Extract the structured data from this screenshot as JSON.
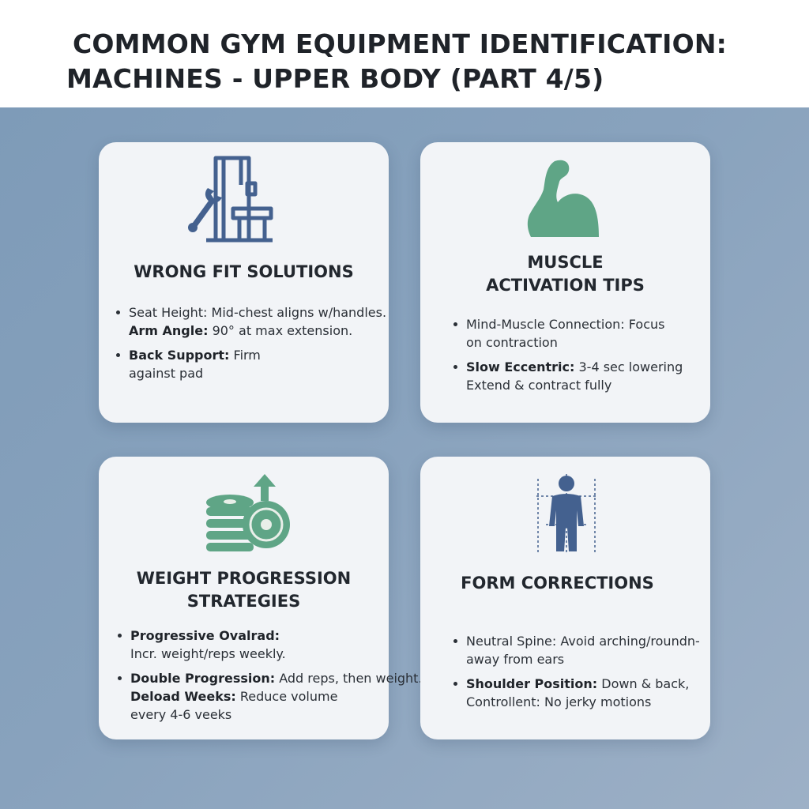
{
  "header": {
    "title_line1": "COMMON GYM EQUIPMENT IDENTIFICATION:",
    "title_line2": "MACHINES - UPPER BODY (PART 4/5)"
  },
  "colors": {
    "accent_blue": "#44618f",
    "accent_green": "#5fa586",
    "background": "#8aa3bd"
  },
  "cards": [
    {
      "icon": "machine-wrench-icon",
      "title": "WRONG FIT SOLUTIONS",
      "items": [
        {
          "label": "",
          "text": "Seat Height: Mid-chest aligns w/handles."
        },
        {
          "label": "Arm Angle:",
          "text": " 90° at max extension."
        },
        {
          "label": "Back Support:",
          "text": " Firm",
          "text2": "against pad"
        }
      ]
    },
    {
      "icon": "flexed-bicep-icon",
      "title_line1": "MUSCLE",
      "title_line2": "ACTIVATION TIPS",
      "items": [
        {
          "text": "Mind-Muscle Connection: Focus",
          "text2": "on contraction"
        },
        {
          "label": "Slow Eccentric:",
          "text": " 3-4 sec lowering",
          "text2": "Extend & contract fully"
        }
      ]
    },
    {
      "icon": "weight-plates-up-arrow-icon",
      "title_line1": "WEIGHT PROGRESSION",
      "title_line2": "STRATEGIES",
      "items": [
        {
          "label": "Progressive Ovalrad:",
          "text2": "Incr. weight/reps weekly."
        },
        {
          "label": "Double Progression:",
          "text": " Add reps, then weight."
        },
        {
          "label": "Deload Weeks:",
          "text": " Reduce volume",
          "text2": "every 4-6 veeks"
        }
      ]
    },
    {
      "icon": "body-alignment-icon",
      "title": "FORM CORRECTIONS",
      "items": [
        {
          "text": "Neutral Spine: Avoid arching/roundn-",
          "text2": "away from ears"
        },
        {
          "label": "Shoulder Position:",
          "text": " Down & back,",
          "text2": "Controllent: No jerky motions"
        }
      ]
    }
  ]
}
